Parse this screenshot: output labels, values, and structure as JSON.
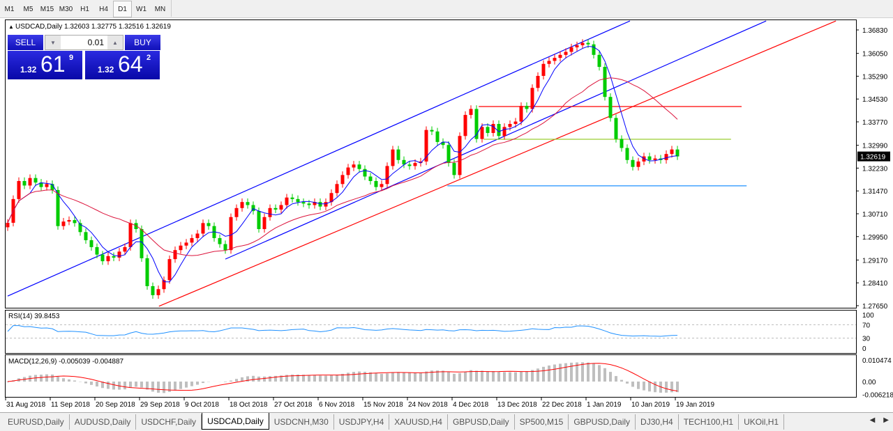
{
  "toolbar": {
    "timeframes": [
      "M1",
      "M5",
      "M15",
      "M30",
      "H1",
      "H4",
      "D1",
      "W1",
      "MN"
    ],
    "active": "D1"
  },
  "chart": {
    "header": "USDCAD,Daily  1.32603 1.32775 1.32516 1.32619",
    "current_price": "1.32619",
    "price_ticks": [
      "1.36830",
      "1.36050",
      "1.35290",
      "1.34530",
      "1.33770",
      "1.32990",
      "1.32230",
      "1.31470",
      "1.30710",
      "1.29950",
      "1.29170",
      "1.28410",
      "1.27650"
    ],
    "colors": {
      "bull": "#ff0000",
      "bear": "#00cc00",
      "grid": "#000000",
      "ma_fast": "#0000ff",
      "ma_slow": "#dc143c"
    }
  },
  "one_click": {
    "sell": "SELL",
    "buy": "BUY",
    "lot": "0.01",
    "sell_price": {
      "prefix": "1.32",
      "big": "61",
      "sup": "9"
    },
    "buy_price": {
      "prefix": "1.32",
      "big": "64",
      "sup": "2"
    }
  },
  "rsi": {
    "label": "RSI(14) 39.8453",
    "ticks": [
      "100",
      "70",
      "30",
      "0"
    ]
  },
  "macd": {
    "label": "MACD(12,26,9) -0.005039 -0.004887",
    "ticks": [
      "0.010474",
      "0.00",
      "-0.006218"
    ]
  },
  "dates": [
    "31 Aug 2018",
    "11 Sep 2018",
    "20 Sep 2018",
    "29 Sep 2018",
    "9 Oct 2018",
    "18 Oct 2018",
    "27 Oct 2018",
    "6 Nov 2018",
    "15 Nov 2018",
    "24 Nov 2018",
    "4 Dec 2018",
    "13 Dec 2018",
    "22 Dec 2018",
    "1 Jan 2019",
    "10 Jan 2019",
    "19 Jan 2019"
  ],
  "tabs": [
    "EURUSD,Daily",
    "AUDUSD,Daily",
    "USDCHF,Daily",
    "USDCAD,Daily",
    "USDCNH,M30",
    "USDJPY,H4",
    "XAUUSD,H4",
    "GBPUSD,Daily",
    "SP500,M15",
    "GBPUSD,Daily",
    "DJ30,H4",
    "TECH100,H1",
    "UKOil,H1"
  ],
  "active_tab": "USDCAD,Daily",
  "chart_data": {
    "type": "candlestick",
    "symbol": "USDCAD",
    "timeframe": "Daily",
    "ylim": [
      1.2765,
      1.3683
    ],
    "closes": [
      1.3041,
      1.312,
      1.318,
      1.3165,
      1.319,
      1.3175,
      1.316,
      1.317,
      1.315,
      1.303,
      1.3045,
      1.305,
      1.304,
      1.301,
      1.2983,
      1.296,
      1.2935,
      1.2913,
      1.293,
      1.2925,
      1.2945,
      1.296,
      1.304,
      1.302,
      1.2923,
      1.283,
      1.28,
      1.282,
      1.285,
      1.292,
      1.295,
      1.2965,
      1.2975,
      1.299,
      1.3005,
      1.304,
      1.303,
      1.299,
      1.297,
      1.295,
      1.306,
      1.309,
      1.311,
      1.31,
      1.308,
      1.302,
      1.306,
      1.309,
      1.3085,
      1.31,
      1.3125,
      1.312,
      1.311,
      1.3105,
      1.31,
      1.311,
      1.3095,
      1.311,
      1.314,
      1.317,
      1.32,
      1.3225,
      1.3235,
      1.322,
      1.3195,
      1.318,
      1.316,
      1.317,
      1.323,
      1.3285,
      1.325,
      1.3235,
      1.323,
      1.324,
      1.3245,
      1.335,
      1.3345,
      1.331,
      1.33,
      1.324,
      1.32,
      1.333,
      1.34,
      1.342,
      1.332,
      1.336,
      1.334,
      1.337,
      1.333,
      1.336,
      1.337,
      1.3378,
      1.343,
      1.342,
      1.349,
      1.353,
      1.357,
      1.358,
      1.359,
      1.36,
      1.361,
      1.3625,
      1.3632,
      1.364,
      1.3635,
      1.36,
      1.356,
      1.346,
      1.339,
      1.332,
      1.329,
      1.325,
      1.3227,
      1.3245,
      1.3262,
      1.325,
      1.3255,
      1.325,
      1.327,
      1.3285,
      1.3262
    ],
    "lines": [
      {
        "kind": "channel-upper",
        "color": "#0000ff",
        "from": [
          0,
          1.2797
        ],
        "to": [
          111.5,
          1.3713
        ]
      },
      {
        "kind": "channel-lower",
        "color": "#0000ff",
        "from": [
          39,
          1.292
        ],
        "to": [
          135.9,
          1.3713
        ]
      },
      {
        "kind": "trend",
        "color": "#ff0000",
        "from": [
          27.1,
          1.2763
        ],
        "to": [
          148.4,
          1.3713
        ]
      },
      {
        "kind": "horizontal",
        "color": "#ff0000",
        "from": [
          84.4,
          1.3428
        ],
        "to": [
          131.5,
          1.3428
        ]
      },
      {
        "kind": "horizontal",
        "color": "#9acd32",
        "from": [
          85.3,
          1.3319
        ],
        "to": [
          129.6,
          1.3319
        ]
      },
      {
        "kind": "horizontal",
        "color": "#1e90ff",
        "from": [
          78.8,
          1.3164
        ],
        "to": [
          132.4,
          1.3164
        ]
      }
    ],
    "indicators": [
      "MA fast (blue)",
      "MA slow (red)",
      "RSI(14)",
      "MACD(12,26,9)"
    ]
  }
}
